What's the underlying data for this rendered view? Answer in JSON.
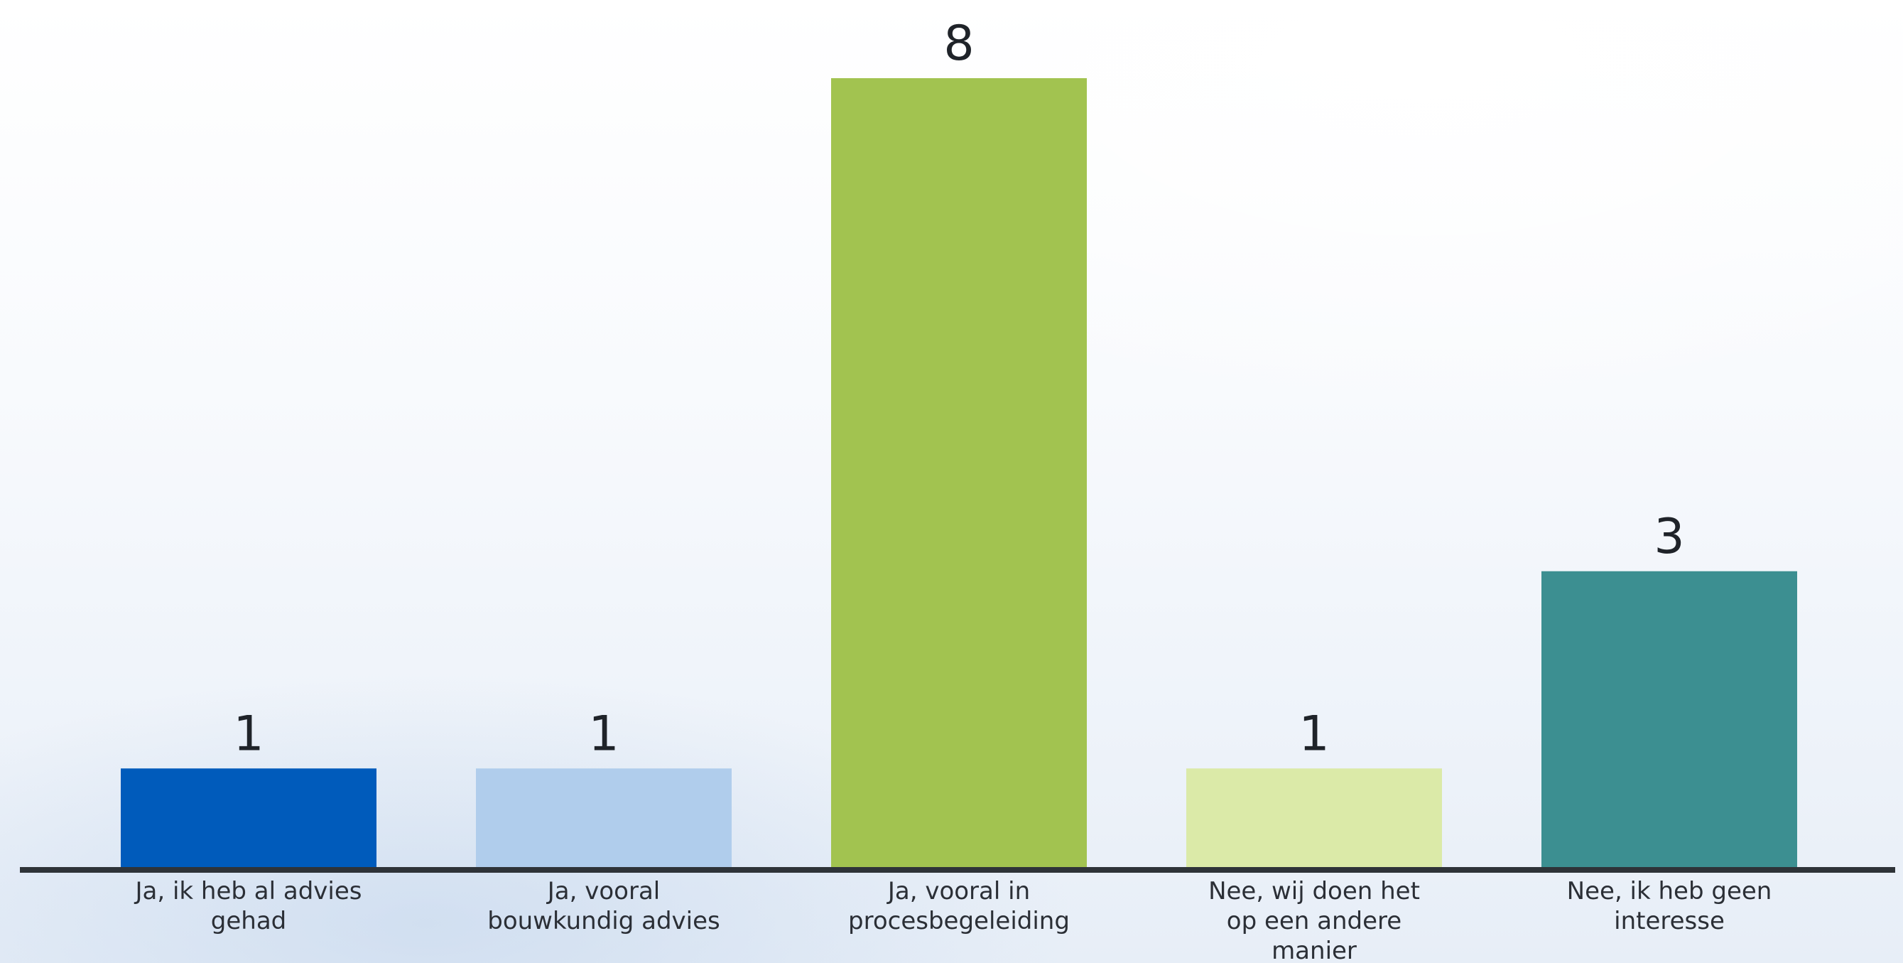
{
  "chart_data": {
    "type": "bar",
    "categories": [
      [
        "Ja, ik heb al advies",
        "gehad"
      ],
      [
        "Ja, vooral",
        "bouwkundig advies"
      ],
      [
        "Ja, vooral in",
        "procesbegeleiding"
      ],
      [
        "Nee, wij doen het",
        "op een andere",
        "manier"
      ],
      [
        "Nee, ik heb geen",
        "interesse"
      ]
    ],
    "values": [
      1,
      1,
      8,
      1,
      3
    ],
    "colors": [
      "#005bbb",
      "#b0cdec",
      "#a2c350",
      "#dbeaa8",
      "#3c8f91"
    ],
    "axis_color": "#2e3338",
    "title": "",
    "xlabel": "",
    "ylabel": "",
    "ylim": [
      0,
      8
    ],
    "grid": false
  }
}
